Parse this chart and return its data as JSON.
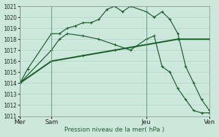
{
  "xlabel": "Pression niveau de la mer( hPa )",
  "ylim": [
    1011,
    1021
  ],
  "yticks": [
    1011,
    1012,
    1013,
    1014,
    1015,
    1016,
    1017,
    1018,
    1019,
    1020,
    1021
  ],
  "xtick_labels": [
    "Mer",
    "Sam",
    "Jeu",
    "Ven"
  ],
  "xtick_positions": [
    0,
    2,
    8,
    12
  ],
  "bg_color": "#cce8dc",
  "line_color": "#1a5e28",
  "grid_color": "#a8ccc0",
  "line1_x": [
    0,
    0.5,
    2,
    2.5,
    3,
    3.5,
    4,
    4.5,
    5,
    5.5,
    6,
    6.5,
    7,
    8,
    8.5,
    9,
    9.5,
    10,
    10.5,
    11,
    11.5,
    12
  ],
  "line1_y": [
    1014.0,
    1015.3,
    1018.5,
    1018.5,
    1019.0,
    1019.2,
    1019.5,
    1019.5,
    1019.8,
    1020.7,
    1021.0,
    1020.5,
    1021.0,
    1020.5,
    1020.0,
    1020.5,
    1019.8,
    1018.5,
    1015.5,
    1014.0,
    1012.5,
    1011.5
  ],
  "line2_x": [
    0,
    2,
    2.5,
    3,
    4,
    5,
    6,
    7,
    8,
    8.5,
    9,
    9.5,
    10,
    10.5,
    11,
    11.5,
    12
  ],
  "line2_y": [
    1014.0,
    1017.0,
    1018.0,
    1018.5,
    1018.3,
    1018.0,
    1017.5,
    1017.0,
    1018.0,
    1018.3,
    1015.5,
    1015.0,
    1013.5,
    1012.5,
    1011.5,
    1011.3,
    1011.3
  ],
  "line3_x": [
    0,
    2,
    4,
    6,
    8,
    10,
    12
  ],
  "line3_y": [
    1014.0,
    1016.0,
    1016.5,
    1017.0,
    1017.5,
    1018.0,
    1018.0
  ]
}
